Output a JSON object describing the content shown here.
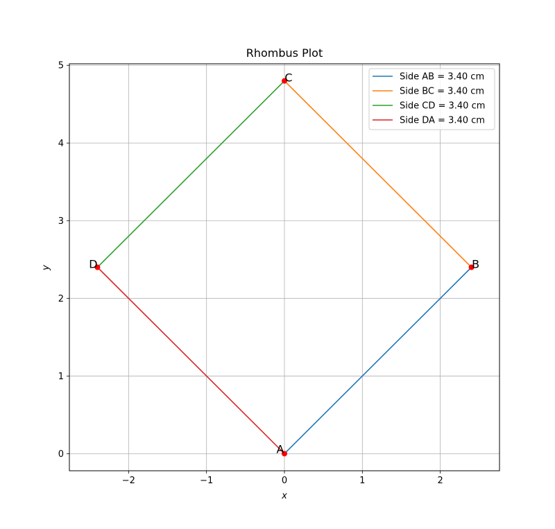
{
  "chart_data": {
    "type": "line",
    "title": "Rhombus Plot",
    "xlabel": "x",
    "ylabel": "y",
    "xlim": [
      -2.76,
      2.76
    ],
    "ylim": [
      -0.22,
      5.02
    ],
    "x_ticks": [
      -2,
      -1,
      0,
      1,
      2
    ],
    "y_ticks": [
      0,
      1,
      2,
      3,
      4,
      5
    ],
    "x_tick_labels": [
      "−2",
      "−1",
      "0",
      "1",
      "2"
    ],
    "y_tick_labels": [
      "0",
      "1",
      "2",
      "3",
      "4",
      "5"
    ],
    "grid": true,
    "legend_position": "top-right",
    "vertices": [
      {
        "label": "A",
        "x": 0.0,
        "y": 0.0
      },
      {
        "label": "B",
        "x": 2.4,
        "y": 2.4
      },
      {
        "label": "C",
        "x": 0.0,
        "y": 4.8
      },
      {
        "label": "D",
        "x": -2.4,
        "y": 2.4
      }
    ],
    "series": [
      {
        "name": "Side AB = 3.40 cm",
        "color": "#1f77b4",
        "x": [
          0.0,
          2.4
        ],
        "y": [
          0.0,
          2.4
        ]
      },
      {
        "name": "Side BC = 3.40 cm",
        "color": "#ff7f0e",
        "x": [
          2.4,
          0.0
        ],
        "y": [
          2.4,
          4.8
        ]
      },
      {
        "name": "Side CD = 3.40 cm",
        "color": "#2ca02c",
        "x": [
          0.0,
          -2.4
        ],
        "y": [
          4.8,
          2.4
        ]
      },
      {
        "name": "Side DA = 3.40 cm",
        "color": "#d62728",
        "x": [
          -2.4,
          0.0
        ],
        "y": [
          2.4,
          0.0
        ]
      }
    ],
    "vertex_marker_color": "#ff0000"
  }
}
